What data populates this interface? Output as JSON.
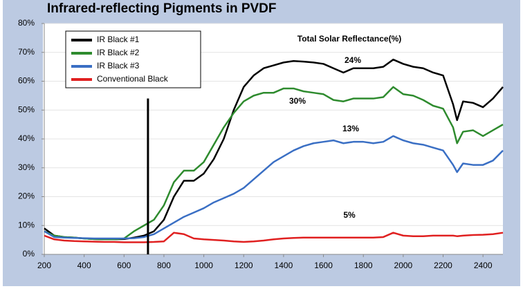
{
  "chart_data": {
    "type": "line",
    "title": "Infrared-reflecting Pigments in PVDF",
    "x": [
      200,
      250,
      300,
      350,
      400,
      450,
      500,
      550,
      600,
      650,
      700,
      750,
      800,
      850,
      900,
      950,
      1000,
      1050,
      1100,
      1150,
      1200,
      1250,
      1300,
      1350,
      1400,
      1450,
      1500,
      1550,
      1600,
      1650,
      1700,
      1750,
      1800,
      1850,
      1900,
      1950,
      2000,
      2050,
      2100,
      2150,
      2200,
      2250,
      2270,
      2300,
      2350,
      2400,
      2450,
      2500
    ],
    "series": [
      {
        "name": "IR Black #1",
        "color": "#000000",
        "values": [
          9,
          6.5,
          6,
          5.8,
          5.5,
          5.3,
          5.2,
          5.2,
          5.3,
          5.8,
          6.5,
          8,
          12,
          20,
          25.5,
          25.5,
          28,
          33,
          40,
          50,
          58,
          62,
          64.5,
          65.5,
          66.5,
          67,
          66.8,
          66.5,
          66,
          64.5,
          63,
          64.5,
          64.5,
          64.5,
          65,
          67.5,
          66,
          65,
          64.5,
          63,
          62,
          52,
          46.5,
          53,
          52.5,
          51,
          54,
          58
        ]
      },
      {
        "name": "IR Black #2",
        "color": "#2e8b2e",
        "values": [
          8,
          6.5,
          6,
          5.8,
          5.5,
          5.3,
          5.2,
          5.2,
          5.5,
          8,
          10,
          12,
          17,
          25,
          29,
          29,
          32,
          38,
          44,
          49,
          53,
          55,
          56,
          56,
          57.5,
          57.5,
          56.5,
          56,
          55.5,
          53.5,
          53,
          54,
          54,
          54,
          54.5,
          58,
          55.5,
          55,
          53.5,
          51.5,
          50.5,
          44,
          38.5,
          42.5,
          43,
          41,
          43,
          45
        ]
      },
      {
        "name": "IR Black #3",
        "color": "#3a6fc4",
        "values": [
          8,
          6,
          5.8,
          5.7,
          5.6,
          5.5,
          5.5,
          5.5,
          5.5,
          5.6,
          6,
          7,
          9,
          11,
          13,
          14.5,
          16,
          18,
          19.5,
          21,
          23,
          26,
          29,
          32,
          34,
          36,
          37.5,
          38.5,
          39,
          39.5,
          38.5,
          39,
          39,
          38.5,
          39,
          41,
          39.5,
          38.5,
          38,
          37,
          36,
          31,
          28.5,
          31.5,
          31,
          31,
          32.5,
          36
        ]
      },
      {
        "name": "Conventional Black",
        "color": "#e02020",
        "values": [
          6.5,
          5.2,
          4.8,
          4.6,
          4.5,
          4.4,
          4.3,
          4.3,
          4.2,
          4.2,
          4.2,
          4.3,
          4.5,
          7.5,
          7,
          5.5,
          5.2,
          5,
          4.8,
          4.5,
          4.3,
          4.5,
          4.8,
          5.2,
          5.5,
          5.7,
          5.8,
          5.8,
          5.8,
          5.8,
          5.8,
          5.8,
          5.8,
          5.8,
          6,
          7.5,
          6.5,
          6.3,
          6.3,
          6.5,
          6.5,
          6.5,
          6.3,
          6.5,
          6.7,
          6.8,
          7,
          7.5
        ]
      }
    ],
    "xlim": [
      200,
      2500
    ],
    "xticks": [
      200,
      400,
      600,
      800,
      1000,
      1200,
      1400,
      1600,
      1800,
      2000,
      2200,
      2400
    ],
    "ylim": [
      0,
      80
    ],
    "yticks": [
      {
        "value": 0,
        "label": "0%"
      },
      {
        "value": 10,
        "label": "10%"
      },
      {
        "value": 20,
        "label": "20%"
      },
      {
        "value": 30,
        "label": "30%"
      },
      {
        "value": 40,
        "label": "40%"
      },
      {
        "value": 50,
        "label": "50%"
      },
      {
        "value": 60,
        "label": "60%"
      },
      {
        "value": 70,
        "label": "70%"
      },
      {
        "value": 80,
        "label": "80%"
      }
    ],
    "grid": true,
    "legend": "upper left",
    "vline_x": 720,
    "vline_top": 54,
    "annotations": [
      "Total Solar Reflectance(%)",
      "24%",
      "30%",
      "13%",
      "5%"
    ]
  }
}
